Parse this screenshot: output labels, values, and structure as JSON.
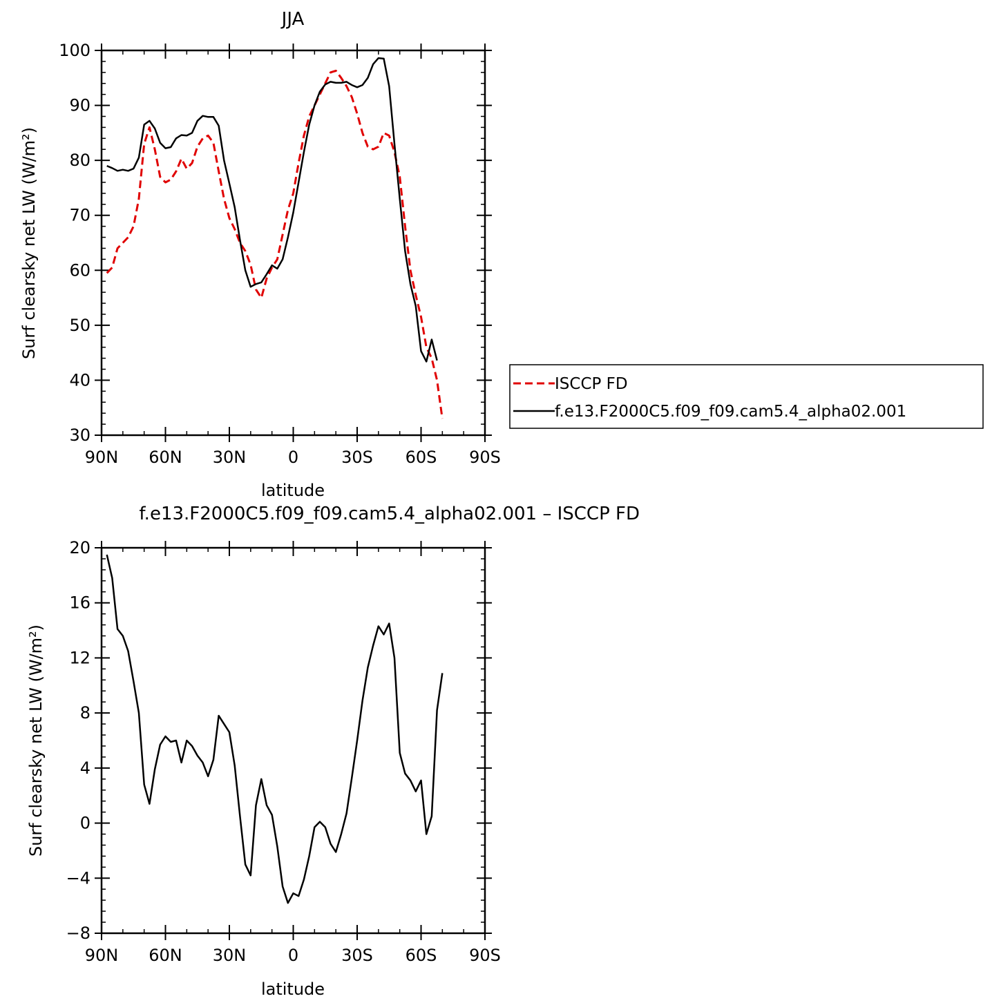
{
  "chart_data": [
    {
      "type": "line",
      "title": "JJA",
      "xlabel": "latitude",
      "ylabel": "Surf clearsky net LW (W/m²)",
      "xlim": [
        -90,
        90
      ],
      "ylim": [
        30,
        100
      ],
      "x_ticks": [
        {
          "value": -90,
          "label": "90N"
        },
        {
          "value": -60,
          "label": "60N"
        },
        {
          "value": -30,
          "label": "30N"
        },
        {
          "value": 0,
          "label": "0"
        },
        {
          "value": 30,
          "label": "30S"
        },
        {
          "value": 60,
          "label": "60S"
        },
        {
          "value": 90,
          "label": "90S"
        }
      ],
      "y_ticks": [
        30,
        40,
        50,
        60,
        70,
        80,
        90,
        100
      ],
      "legend_position": "right",
      "series": [
        {
          "name": "ISCCP FD",
          "color": "#e00000",
          "dash": true,
          "points": [
            [
              -87.5,
              59.5
            ],
            [
              -85,
              60.5
            ],
            [
              -82.5,
              64
            ],
            [
              -80,
              65
            ],
            [
              -77.5,
              66
            ],
            [
              -75,
              68
            ],
            [
              -72.5,
              73
            ],
            [
              -70,
              83
            ],
            [
              -67.5,
              86
            ],
            [
              -65,
              82
            ],
            [
              -62.5,
              77
            ],
            [
              -60,
              76
            ],
            [
              -57.5,
              76.5
            ],
            [
              -55,
              78
            ],
            [
              -52.5,
              80.3
            ],
            [
              -50,
              78.5
            ],
            [
              -47.5,
              79.5
            ],
            [
              -45,
              82.5
            ],
            [
              -42.5,
              84
            ],
            [
              -40,
              84.5
            ],
            [
              -37.5,
              83.2
            ],
            [
              -35,
              78
            ],
            [
              -32.5,
              73
            ],
            [
              -30,
              69.5
            ],
            [
              -27.5,
              67.5
            ],
            [
              -25,
              65
            ],
            [
              -22.5,
              63.5
            ],
            [
              -20,
              61
            ],
            [
              -17.5,
              56.5
            ],
            [
              -15,
              55
            ],
            [
              -12.5,
              58.5
            ],
            [
              -10,
              60.5
            ],
            [
              -7.5,
              62
            ],
            [
              -5,
              66.5
            ],
            [
              -2.5,
              71
            ],
            [
              0,
              74
            ],
            [
              2.5,
              79.5
            ],
            [
              5,
              84.5
            ],
            [
              7.5,
              88
            ],
            [
              10,
              90
            ],
            [
              12.5,
              92
            ],
            [
              15,
              94
            ],
            [
              17.5,
              96
            ],
            [
              20,
              96.3
            ],
            [
              22.5,
              95
            ],
            [
              25,
              93.5
            ],
            [
              27.5,
              91.5
            ],
            [
              30,
              88.5
            ],
            [
              32.5,
              85
            ],
            [
              35,
              82.5
            ],
            [
              37.5,
              82
            ],
            [
              40,
              82.5
            ],
            [
              42.5,
              85
            ],
            [
              45,
              84.5
            ],
            [
              47.5,
              81.5
            ],
            [
              50,
              77
            ],
            [
              52.5,
              68
            ],
            [
              55,
              60
            ],
            [
              57.5,
              55.5
            ],
            [
              60,
              51.5
            ],
            [
              62.5,
              46
            ],
            [
              65,
              44
            ],
            [
              67.5,
              40
            ],
            [
              70,
              33
            ]
          ]
        },
        {
          "name": "f.e13.F2000C5.f09_f09.cam5.4_alpha02.001",
          "color": "#000000",
          "dash": false,
          "points": [
            [
              -87.5,
              79
            ],
            [
              -85,
              78.6
            ],
            [
              -82.5,
              78.1
            ],
            [
              -80,
              78.3
            ],
            [
              -77.5,
              78.1
            ],
            [
              -75,
              78.5
            ],
            [
              -72.5,
              80.5
            ],
            [
              -70,
              86.5
            ],
            [
              -67.5,
              87.2
            ],
            [
              -65,
              85.8
            ],
            [
              -62.5,
              83.2
            ],
            [
              -60,
              82.2
            ],
            [
              -57.5,
              82.4
            ],
            [
              -55,
              84
            ],
            [
              -52.5,
              84.6
            ],
            [
              -50,
              84.5
            ],
            [
              -47.5,
              85
            ],
            [
              -45,
              87.2
            ],
            [
              -42.5,
              88.1
            ],
            [
              -40,
              87.9
            ],
            [
              -37.5,
              87.9
            ],
            [
              -35,
              86.3
            ],
            [
              -32.5,
              80
            ],
            [
              -30,
              75.8
            ],
            [
              -27.5,
              71.5
            ],
            [
              -25,
              65.5
            ],
            [
              -22.5,
              60
            ],
            [
              -20,
              57
            ],
            [
              -17.5,
              57.5
            ],
            [
              -15,
              57.8
            ],
            [
              -12.5,
              59.3
            ],
            [
              -10,
              60.9
            ],
            [
              -7.5,
              60.3
            ],
            [
              -5,
              62
            ],
            [
              -2.5,
              66
            ],
            [
              0,
              70.5
            ],
            [
              2.5,
              76
            ],
            [
              5,
              81.5
            ],
            [
              7.5,
              86.5
            ],
            [
              10,
              90
            ],
            [
              12.5,
              92.5
            ],
            [
              15,
              93.8
            ],
            [
              17.5,
              94.3
            ],
            [
              20,
              94.1
            ],
            [
              22.5,
              94.1
            ],
            [
              25,
              94.3
            ],
            [
              27.5,
              93.7
            ],
            [
              30,
              93.3
            ],
            [
              32.5,
              93.7
            ],
            [
              35,
              95
            ],
            [
              37.5,
              97.5
            ],
            [
              40,
              98.6
            ],
            [
              42.5,
              98.5
            ],
            [
              45,
              93.5
            ],
            [
              47.5,
              83
            ],
            [
              50,
              73
            ],
            [
              52.5,
              63.5
            ],
            [
              55,
              57.5
            ],
            [
              57.5,
              53.5
            ],
            [
              60,
              45.3
            ],
            [
              62.5,
              43.4
            ],
            [
              65,
              47.4
            ],
            [
              67.5,
              43.6
            ]
          ]
        }
      ]
    },
    {
      "type": "line",
      "title": "f.e13.F2000C5.f09_f09.cam5.4_alpha02.001 – ISCCP FD",
      "xlabel": "latitude",
      "ylabel": "Surf clearsky net LW (W/m²)",
      "xlim": [
        -90,
        90
      ],
      "ylim": [
        -8,
        20
      ],
      "x_ticks": [
        {
          "value": -90,
          "label": "90N"
        },
        {
          "value": -60,
          "label": "60N"
        },
        {
          "value": -30,
          "label": "30N"
        },
        {
          "value": 0,
          "label": "0"
        },
        {
          "value": 30,
          "label": "30S"
        },
        {
          "value": 60,
          "label": "60S"
        },
        {
          "value": 90,
          "label": "90S"
        }
      ],
      "y_ticks": [
        -8,
        -4,
        0,
        4,
        8,
        12,
        16,
        20
      ],
      "series": [
        {
          "color": "#000000",
          "dash": false,
          "points": [
            [
              -87.5,
              19.5
            ],
            [
              -85,
              17.8
            ],
            [
              -82.5,
              14.1
            ],
            [
              -80,
              13.6
            ],
            [
              -77.5,
              12.5
            ],
            [
              -75,
              10.3
            ],
            [
              -72.5,
              8
            ],
            [
              -70,
              2.8
            ],
            [
              -67.5,
              1.4
            ],
            [
              -65,
              3.9
            ],
            [
              -62.5,
              5.7
            ],
            [
              -60,
              6.3
            ],
            [
              -57.5,
              5.9
            ],
            [
              -55,
              6
            ],
            [
              -52.5,
              4.4
            ],
            [
              -50,
              6
            ],
            [
              -47.5,
              5.6
            ],
            [
              -45,
              4.9
            ],
            [
              -42.5,
              4.4
            ],
            [
              -40,
              3.4
            ],
            [
              -37.5,
              4.6
            ],
            [
              -35,
              7.8
            ],
            [
              -32.5,
              7.2
            ],
            [
              -30,
              6.6
            ],
            [
              -27.5,
              4.2
            ],
            [
              -25,
              0.5
            ],
            [
              -22.5,
              -3
            ],
            [
              -20,
              -3.8
            ],
            [
              -17.5,
              1.3
            ],
            [
              -15,
              3.2
            ],
            [
              -12.5,
              1.3
            ],
            [
              -10,
              0.6
            ],
            [
              -7.5,
              -1.7
            ],
            [
              -5,
              -4.6
            ],
            [
              -2.5,
              -5.8
            ],
            [
              0,
              -5.1
            ],
            [
              2.5,
              -5.3
            ],
            [
              5,
              -4.1
            ],
            [
              7.5,
              -2.4
            ],
            [
              10,
              -0.3
            ],
            [
              12.5,
              0.1
            ],
            [
              15,
              -0.3
            ],
            [
              17.5,
              -1.5
            ],
            [
              20,
              -2.1
            ],
            [
              22.5,
              -0.8
            ],
            [
              25,
              0.7
            ],
            [
              27.5,
              3.3
            ],
            [
              30,
              6
            ],
            [
              32.5,
              8.9
            ],
            [
              35,
              11.3
            ],
            [
              37.5,
              12.9
            ],
            [
              40,
              14.3
            ],
            [
              42.5,
              13.7
            ],
            [
              45,
              14.5
            ],
            [
              47.5,
              12
            ],
            [
              50,
              5.1
            ],
            [
              52.5,
              3.6
            ],
            [
              55,
              3.1
            ],
            [
              57.5,
              2.3
            ],
            [
              60,
              3.1
            ],
            [
              62.5,
              -0.8
            ],
            [
              65,
              0.5
            ],
            [
              67.5,
              8.2
            ],
            [
              70,
              10.9
            ]
          ]
        }
      ]
    }
  ]
}
